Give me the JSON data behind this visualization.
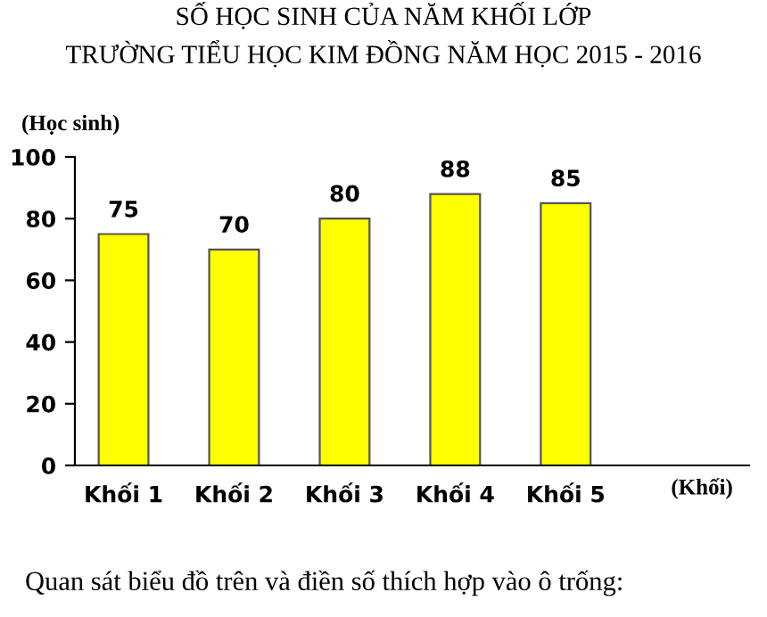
{
  "chart_data": {
    "type": "bar",
    "title": "SỐ HỌC SINH CỦA NĂM KHỐI LỚP\nTRƯỜNG TIỂU HỌC KIM ĐỒNG NĂM HỌC 2015 - 2016",
    "ylabel": "(Học sinh)",
    "xlabel": "(Khối)",
    "categories": [
      "Khối 1",
      "Khối 2",
      "Khối 3",
      "Khối 4",
      "Khối 5"
    ],
    "values": [
      75,
      70,
      80,
      88,
      85
    ],
    "color": "#ffff00",
    "ylim": [
      0,
      100
    ],
    "yticks": [
      0,
      20,
      40,
      60,
      80,
      100
    ],
    "grid": false,
    "data_labels": true,
    "annotations": [
      "Quan sát biểu đồ trên và điền số thích hợp vào ô trống:"
    ]
  }
}
